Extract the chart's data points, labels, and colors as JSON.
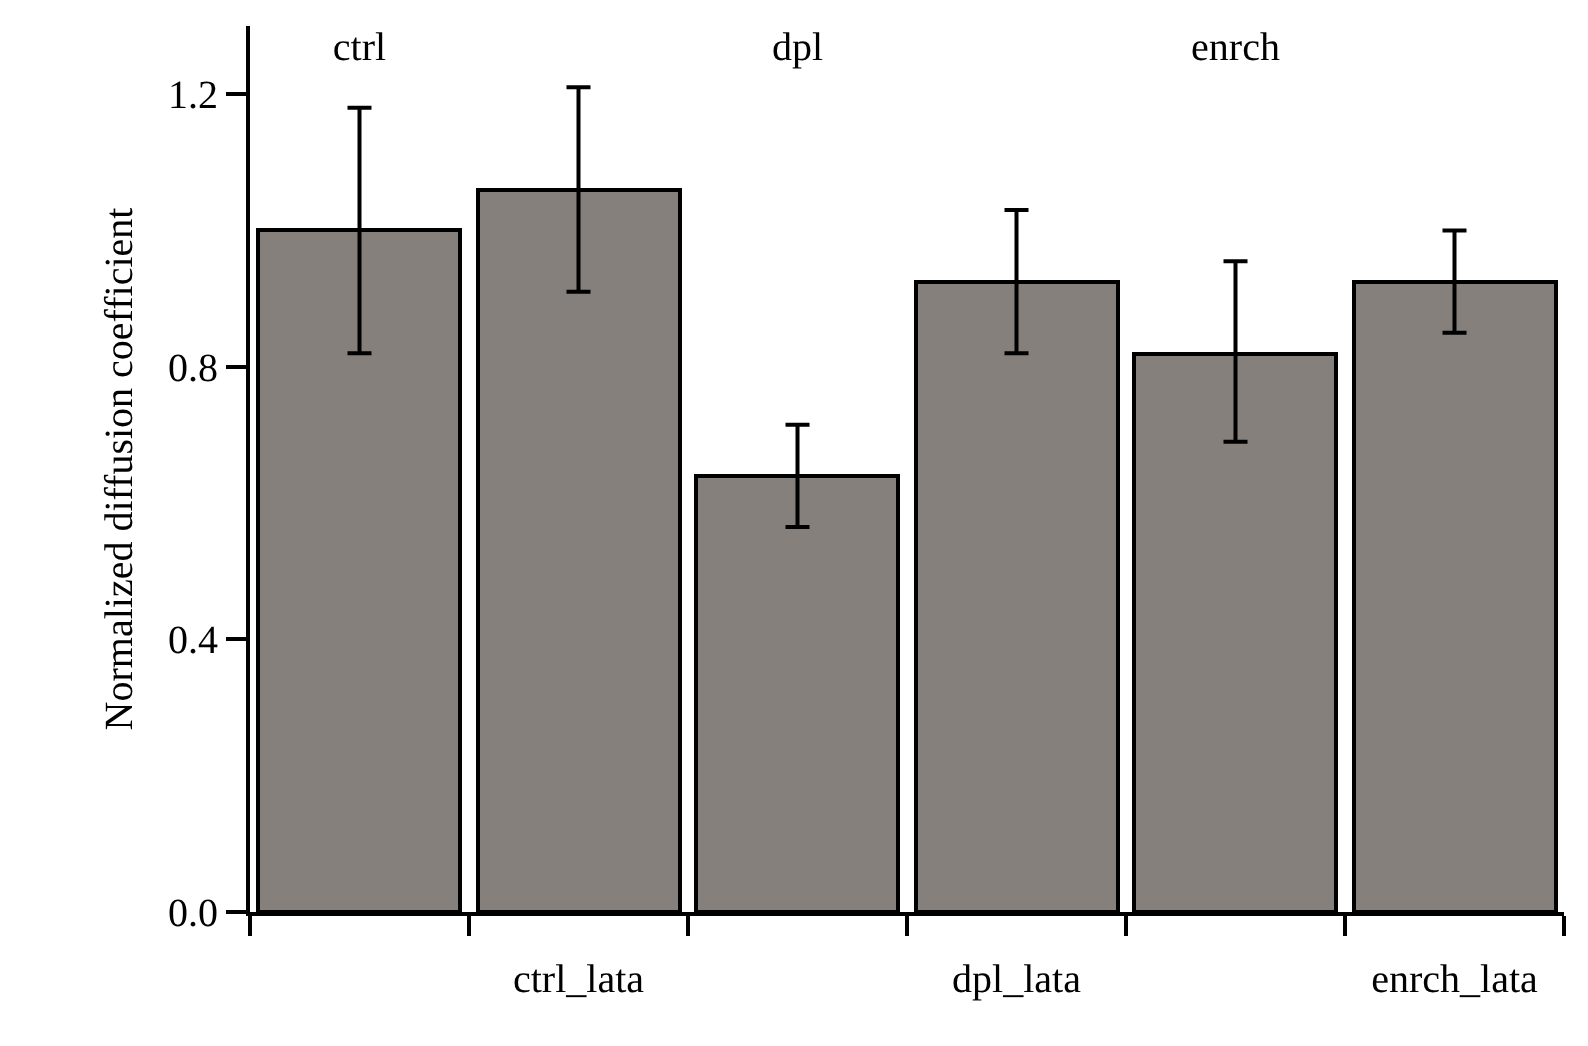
{
  "chart_data": {
    "type": "bar",
    "ylabel": "Normalized diffusion coefficient",
    "categories": [
      "ctrl",
      "ctrl_lata",
      "dpl",
      "dpl_lata",
      "enrch",
      "enrch_lata"
    ],
    "values": [
      1.0,
      1.06,
      0.64,
      0.925,
      0.82,
      0.925
    ],
    "errors": [
      [
        0.82,
        1.18
      ],
      [
        0.91,
        1.21
      ],
      [
        0.565,
        0.715
      ],
      [
        0.82,
        1.03
      ],
      [
        0.69,
        0.955
      ],
      [
        0.85,
        1.0
      ]
    ],
    "color": "#85807c",
    "ylim": [
      0,
      1.3
    ],
    "yticks": [
      {
        "value": 0,
        "label": "0.0"
      },
      0.4,
      0.8,
      1.2
    ],
    "grid": false,
    "legend": false
  }
}
